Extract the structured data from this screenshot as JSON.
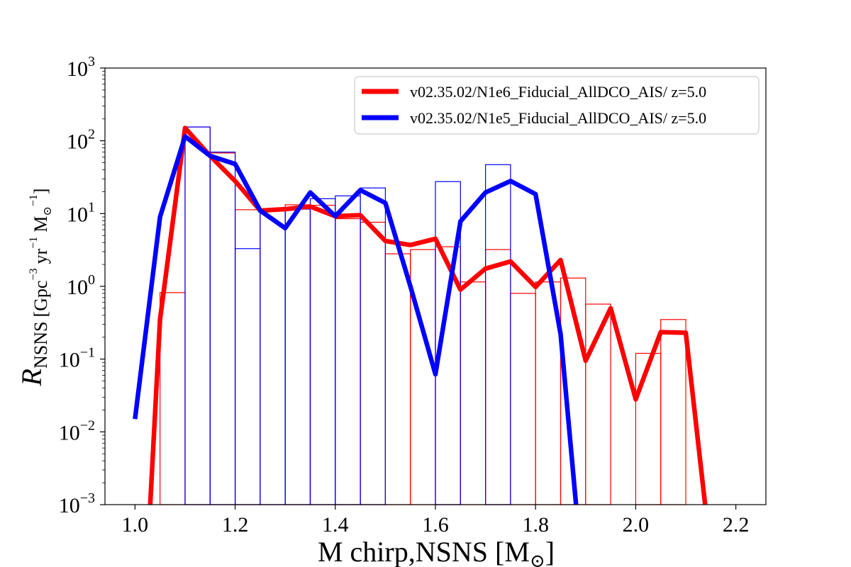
{
  "chart_data": {
    "type": "line",
    "title": "",
    "xlabel": "M chirp,NSNS [M⊙]",
    "xlabel_parts": {
      "main": "M chirp,NSNS [M",
      "symbol": "⊙",
      "close": "]"
    },
    "ylabel": "R NSNS [Gpc⁻³ yr⁻¹ M⊙⁻¹]",
    "ylabel_parts": {
      "R": "R",
      "sub": "NSNS",
      "unit_open": "[Gpc",
      "sup3": "−3",
      "yr": "yr",
      "sup1": "−1",
      "msun": "M",
      "msun_sub": "⊙",
      "msun_sup": "−1",
      "unit_close": "]"
    },
    "xlim": [
      0.94,
      2.26
    ],
    "ylim": [
      0.001,
      1000
    ],
    "yscale": "log",
    "grid": false,
    "legend_position": "top-right",
    "x_ticks": [
      {
        "value": 1.0,
        "label": "1.0"
      },
      {
        "value": 1.2,
        "label": "1.2"
      },
      {
        "value": 1.4,
        "label": "1.4"
      },
      {
        "value": 1.6,
        "label": "1.6"
      },
      {
        "value": 1.8,
        "label": "1.8"
      },
      {
        "value": 2.0,
        "label": "2.0"
      },
      {
        "value": 2.2,
        "label": "2.2"
      }
    ],
    "y_ticks": [
      {
        "value": 0.001,
        "base": "10",
        "exp": "−3"
      },
      {
        "value": 0.01,
        "base": "10",
        "exp": "−2"
      },
      {
        "value": 0.1,
        "base": "10",
        "exp": "−1"
      },
      {
        "value": 1,
        "base": "10",
        "exp": "0"
      },
      {
        "value": 10,
        "base": "10",
        "exp": "1"
      },
      {
        "value": 100,
        "base": "10",
        "exp": "2"
      },
      {
        "value": 1000,
        "base": "10",
        "exp": "3"
      }
    ],
    "series": [
      {
        "name": "v02.35.02/N1e6_Fiducial_AllDCO_AIS/ z=5.0",
        "color": "#ff0000",
        "line": {
          "x": [
            1.025,
            1.05,
            1.1,
            1.15,
            1.2,
            1.25,
            1.3,
            1.35,
            1.4,
            1.45,
            1.5,
            1.55,
            1.6,
            1.65,
            1.7,
            1.75,
            1.8,
            1.85,
            1.9,
            1.95,
            2.0,
            2.05,
            2.1,
            2.15
          ],
          "y": [
            0.0002,
            0.35,
            150,
            62,
            28,
            11,
            11.5,
            12.5,
            9.2,
            9.5,
            4.2,
            3.7,
            4.5,
            0.9,
            1.75,
            2.2,
            0.98,
            2.3,
            0.095,
            0.5,
            0.028,
            0.235,
            0.23,
            0.0002
          ]
        },
        "bars": {
          "edges": [
            1.05,
            1.1,
            1.15,
            1.2,
            1.25,
            1.3,
            1.35,
            1.4,
            1.45,
            1.5,
            1.55,
            1.6,
            1.65,
            1.7,
            1.75,
            1.8,
            1.85,
            1.9,
            1.95,
            2.0,
            2.05,
            2.1
          ],
          "heights": [
            0.82,
            155,
            68,
            11.3,
            11.3,
            13.2,
            13.0,
            8.5,
            7.6,
            2.8,
            3.2,
            3.5,
            1.15,
            3.2,
            0.8,
            1.15,
            1.3,
            0.57,
            0.001,
            0.12,
            0.35
          ]
        }
      },
      {
        "name": "v02.35.02/N1e5_Fiducial_AllDCO_AIS/ z=5.0",
        "color": "#0000ff",
        "line": {
          "x": [
            1.0,
            1.05,
            1.1,
            1.15,
            1.2,
            1.25,
            1.3,
            1.35,
            1.4,
            1.45,
            1.5,
            1.55,
            1.6,
            1.65,
            1.7,
            1.75,
            1.8,
            1.85,
            1.89
          ],
          "y": [
            0.015,
            9.0,
            115,
            62,
            48,
            11,
            6.3,
            19.5,
            9.2,
            21,
            14,
            1.0,
            0.062,
            7.8,
            19.5,
            28,
            18.5,
            0.22,
            0.0002
          ]
        },
        "bars": {
          "edges": [
            1.1,
            1.15,
            1.2,
            1.25,
            1.3,
            1.35,
            1.4,
            1.45,
            1.5,
            1.55,
            1.6,
            1.65,
            1.7,
            1.75,
            1.8
          ],
          "heights": [
            155,
            70,
            3.3,
            11.3,
            11.5,
            16.0,
            17.5,
            22.5,
            0.001,
            0.001,
            27.5,
            0.001,
            47,
            0.001
          ]
        }
      }
    ]
  }
}
